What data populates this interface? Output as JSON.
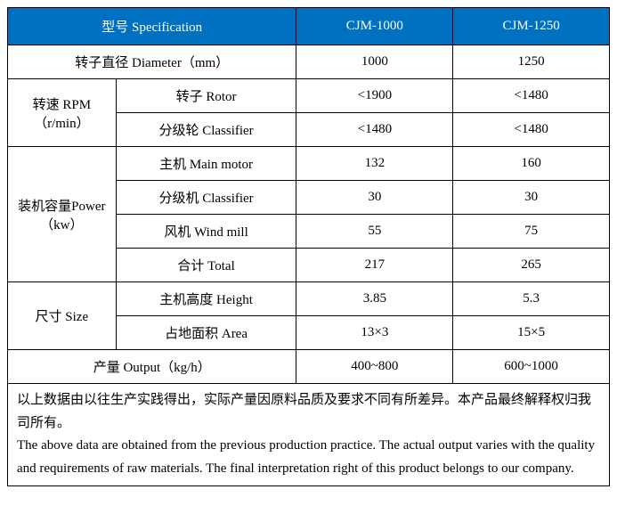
{
  "header": {
    "spec_label": "型号 Specification",
    "col1": "CJM-1000",
    "col2": "CJM-1250"
  },
  "rows": {
    "diameter": {
      "label": "转子直径 Diameter（mm）",
      "v1": "1000",
      "v2": "1250"
    },
    "rpm": {
      "label": "转速 RPM（r/min）",
      "rotor": {
        "label": "转子 Rotor",
        "v1": "<1900",
        "v2": "<1480"
      },
      "classifier": {
        "label": "分级轮 Classifier",
        "v1": "<1480",
        "v2": "<1480"
      }
    },
    "power": {
      "label": "装机容量Power（kw）",
      "main": {
        "label": "主机 Main motor",
        "v1": "132",
        "v2": "160"
      },
      "classifier": {
        "label": "分级机 Classifier",
        "v1": "30",
        "v2": "30"
      },
      "wind": {
        "label": "风机 Wind mill",
        "v1": "55",
        "v2": "75"
      },
      "total": {
        "label": "合计 Total",
        "v1": "217",
        "v2": "265"
      }
    },
    "size": {
      "label": "尺寸 Size",
      "height": {
        "label": "主机高度 Height",
        "v1": "3.85",
        "v2": "5.3"
      },
      "area": {
        "label": "占地面积 Area",
        "v1": "13×3",
        "v2": "15×5"
      }
    },
    "output": {
      "label": "产量 Output（kg/h）",
      "v1": "400~800",
      "v2": "600~1000"
    }
  },
  "footnote": {
    "cn": "以上数据由以往生产实践得出，实际产量因原料品质及要求不同有所差异。本产品最终解释权归我司所有。",
    "en": "The above data are obtained from the previous production practice. The actual output varies with the quality and requirements of raw materials. The final interpretation right of this product belongs to our company."
  },
  "styling": {
    "header_bg": "#0070c0",
    "header_fg": "#ffffff",
    "border_color": "#000000",
    "body_bg": "#ffffff",
    "font_family": "SimSun",
    "base_fontsize": 15,
    "line_height": 1.7,
    "table_type": "specification-table",
    "col_widths_pct": [
      18,
      30,
      26,
      26
    ]
  }
}
